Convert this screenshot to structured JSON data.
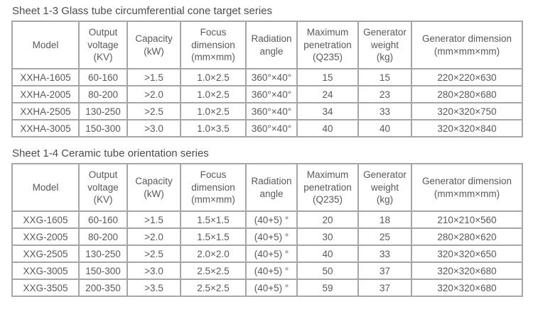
{
  "colors": {
    "text": "#595959",
    "border": "#a6a6a6",
    "title": "#4d4d4d",
    "background": "#ffffff"
  },
  "tables": [
    {
      "title": "Sheet 1-3 Glass tube circumferential cone target series",
      "headers": [
        "Model",
        "Output\nvoltage\n(KV)",
        "Capacity\n(kW)",
        "Focus\ndimension\n(mm×mm)",
        "Radiation\nangle",
        "Maximum\npenetration\n(Q235)",
        "Generator\nweight\n(kg)",
        "Generator dimension\n(mm×mm×mm)"
      ],
      "rows": [
        [
          "XXHA-1605",
          "60-160",
          ">1.5",
          "1.0×2.5",
          "360°×40°",
          "15",
          "15",
          "220×220×630"
        ],
        [
          "XXHA-2005",
          "80-200",
          ">2.0",
          "1.0×2.5",
          "360°×40°",
          "24",
          "23",
          "280×280×680"
        ],
        [
          "XXHA-2505",
          "130-250",
          ">2.5",
          "1.0×2.5",
          "360°×40°",
          "34",
          "33",
          "320×320×750"
        ],
        [
          "XXHA-3005",
          "150-300",
          ">3.0",
          "1.0×3.5",
          "360°×40°",
          "40",
          "40",
          "320×320×840"
        ]
      ]
    },
    {
      "title": "Sheet 1-4 Ceramic tube orientation series",
      "headers": [
        "Model",
        "Output\nvoltage\n(KV)",
        "Capacity\n(kW)",
        "Focus\ndimension\n(mm×mm)",
        "Radiation\nangle",
        "Maximum\npenetration\n(Q235)",
        "Generator\nweight\n(kg)",
        "Generator dimension\n(mm×mm×mm)"
      ],
      "rows": [
        [
          "XXG-1605",
          "60-160",
          ">1.5",
          "1.5×1.5",
          "(40+5) °",
          "20",
          "18",
          "210×210×560"
        ],
        [
          "XXG-2005",
          "80-200",
          ">2.0",
          "1.5×1.5",
          "(40+5) °",
          "30",
          "25",
          "280×280×620"
        ],
        [
          "XXG-2505",
          "130-250",
          ">2.5",
          "2.0×2.0",
          "(40+5) °",
          "40",
          "33",
          "320×320×650"
        ],
        [
          "XXG-3005",
          "150-300",
          ">3.0",
          "2.5×2.5",
          "(40+5) °",
          "50",
          "37",
          "320×320×680"
        ],
        [
          "XXG-3505",
          "200-350",
          ">3.5",
          "2.5×2.5",
          "(40+5) °",
          "59",
          "37",
          "320×320×680"
        ]
      ]
    }
  ]
}
